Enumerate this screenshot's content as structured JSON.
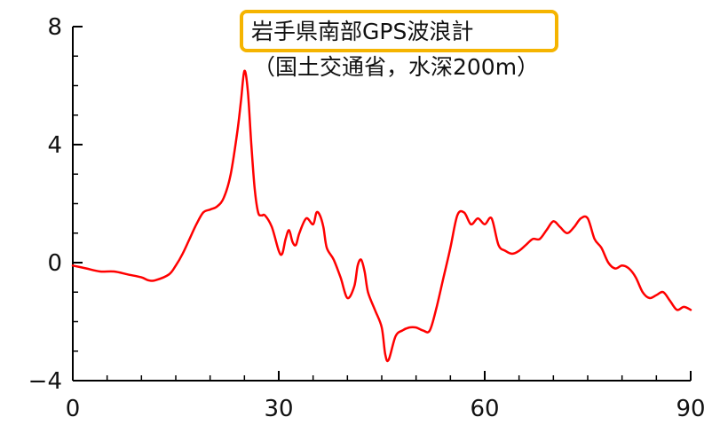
{
  "chart_data": {
    "type": "line",
    "title": "岩手県南部GPS波浪計",
    "subtitle": "（国土交通省，水深200m）",
    "title_highlight_color": "#f5b400",
    "line_color": "#ff0000",
    "xlim": [
      0,
      90
    ],
    "ylim": [
      -4,
      8
    ],
    "x_ticks": [
      0,
      30,
      60,
      90
    ],
    "y_ticks": [
      -4,
      0,
      4,
      8
    ],
    "x_tick_labels": [
      "0",
      "30",
      "60",
      "90"
    ],
    "y_tick_labels": [
      "−4",
      "0",
      "4",
      "8"
    ],
    "grid": false,
    "series": [
      {
        "x": [
          0,
          2,
          4,
          6,
          8,
          10,
          11,
          12,
          14,
          15,
          16,
          17,
          18,
          19,
          20,
          21,
          22,
          23,
          24,
          24.5,
          25,
          25.5,
          26,
          26.5,
          27,
          27.5,
          28,
          29,
          30,
          30.5,
          31,
          31.5,
          32,
          32.5,
          33,
          34,
          35,
          35.5,
          36,
          36.5,
          37,
          38,
          39,
          40,
          41,
          41.5,
          42,
          42.5,
          43,
          44,
          45,
          45.5,
          46,
          47,
          48,
          49,
          50,
          51,
          52,
          53,
          54,
          55,
          56,
          57,
          58,
          59,
          60,
          61,
          62,
          63,
          64,
          65,
          66,
          67,
          68,
          69,
          70,
          71,
          72,
          73,
          74,
          75,
          76,
          77,
          78,
          79,
          80,
          81,
          82,
          83,
          84,
          85,
          86,
          87,
          88,
          89,
          90
        ],
        "y": [
          -0.1,
          -0.2,
          -0.3,
          -0.3,
          -0.4,
          -0.5,
          -0.6,
          -0.6,
          -0.4,
          -0.1,
          0.3,
          0.8,
          1.3,
          1.7,
          1.8,
          1.9,
          2.2,
          3.0,
          4.5,
          5.5,
          6.5,
          5.8,
          4.0,
          2.5,
          1.7,
          1.6,
          1.6,
          1.2,
          0.4,
          0.3,
          0.8,
          1.1,
          0.7,
          0.6,
          1.0,
          1.5,
          1.3,
          1.7,
          1.6,
          1.2,
          0.5,
          0.1,
          -0.5,
          -1.2,
          -0.8,
          -0.1,
          0.1,
          -0.3,
          -1.0,
          -1.6,
          -2.2,
          -3.1,
          -3.3,
          -2.5,
          -2.3,
          -2.2,
          -2.2,
          -2.3,
          -2.3,
          -1.5,
          -0.5,
          0.5,
          1.6,
          1.7,
          1.3,
          1.5,
          1.3,
          1.5,
          0.6,
          0.4,
          0.3,
          0.4,
          0.6,
          0.8,
          0.8,
          1.1,
          1.4,
          1.2,
          1.0,
          1.2,
          1.5,
          1.5,
          0.8,
          0.5,
          0.0,
          -0.2,
          -0.1,
          -0.2,
          -0.5,
          -1.0,
          -1.2,
          -1.1,
          -1.0,
          -1.3,
          -1.6,
          -1.5,
          -1.6
        ]
      }
    ]
  }
}
